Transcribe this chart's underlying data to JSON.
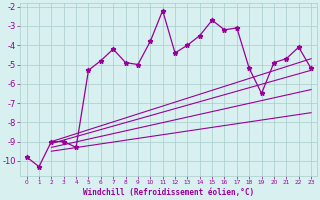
{
  "xlabel": "Windchill (Refroidissement éolien,°C)",
  "x_values": [
    0,
    1,
    2,
    3,
    4,
    5,
    6,
    7,
    8,
    9,
    10,
    11,
    12,
    13,
    14,
    15,
    16,
    17,
    18,
    19,
    20,
    21,
    22,
    23
  ],
  "main_line": [
    -9.8,
    -10.3,
    -9.0,
    -9.0,
    -9.3,
    -5.3,
    -4.8,
    -4.2,
    -4.9,
    -5.0,
    -3.8,
    -2.2,
    -4.4,
    -4.0,
    -3.5,
    -2.7,
    -3.2,
    -3.1,
    -5.2,
    -6.5,
    -4.9,
    -4.7,
    -4.1,
    -5.2
  ],
  "reg_lines": [
    [
      2,
      -9.0,
      23,
      -4.7
    ],
    [
      2,
      -9.1,
      23,
      -5.3
    ],
    [
      2,
      -9.3,
      23,
      -6.3
    ],
    [
      2,
      -9.5,
      23,
      -7.5
    ]
  ],
  "line_color": "#990099",
  "bg_color": "#d8f0f0",
  "grid_color": "#aacccc",
  "ylim": [
    -10.8,
    -1.8
  ],
  "yticks": [
    -10,
    -9,
    -8,
    -7,
    -6,
    -5,
    -4,
    -3,
    -2
  ],
  "xlim": [
    -0.5,
    23.5
  ]
}
